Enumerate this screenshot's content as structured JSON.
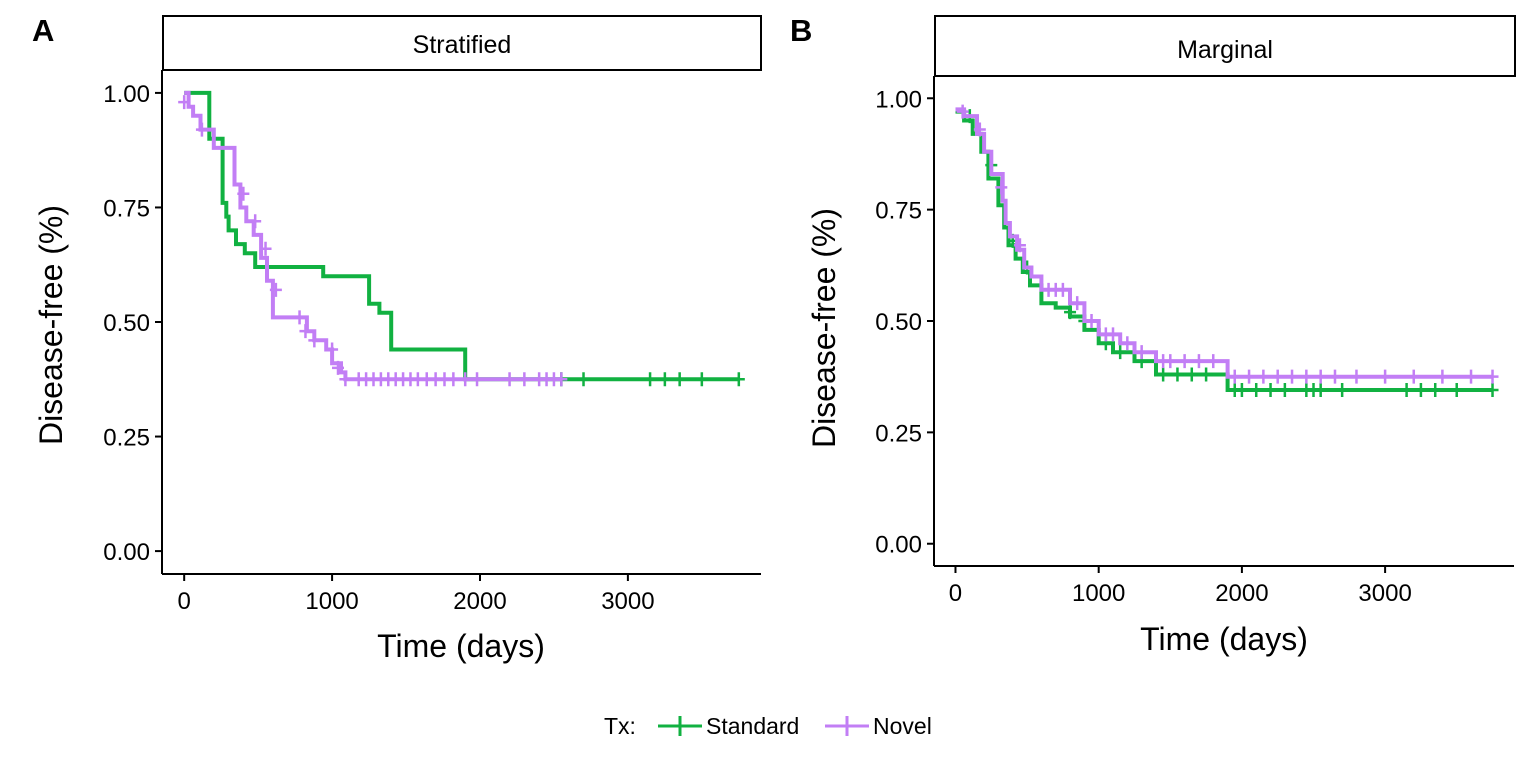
{
  "legend": {
    "title": "Tx:",
    "items": [
      {
        "label": "Standard",
        "color": "#11B141"
      },
      {
        "label": "Novel",
        "color": "#C27EF5"
      }
    ]
  },
  "chart_data": [
    {
      "type": "line",
      "subtype": "kaplan-meier step curve with censoring marks",
      "panel_tag": "A",
      "strip_title": "Stratified",
      "xlabel": "Time (days)",
      "ylabel": "Disease-free (%)",
      "xlim": [
        -150,
        3900
      ],
      "ylim": [
        -0.05,
        1.05
      ],
      "x_ticks": [
        0,
        1000,
        2000,
        3000
      ],
      "x_tick_labels": [
        "0",
        "1000",
        "2000",
        "3000"
      ],
      "y_ticks": [
        0,
        0.25,
        0.5,
        0.75,
        1
      ],
      "y_tick_labels": [
        "0.00",
        "0.25",
        "0.50",
        "0.75",
        "1.00"
      ],
      "grid": false,
      "series": [
        {
          "name": "Standard",
          "color": "#11B141",
          "x": [
            0,
            170,
            170,
            260,
            260,
            285,
            285,
            300,
            300,
            350,
            350,
            410,
            410,
            480,
            480,
            940,
            940,
            1250,
            1250,
            1320,
            1320,
            1400,
            1400,
            1900,
            1900,
            3750
          ],
          "y": [
            1.0,
            1.0,
            0.9,
            0.9,
            0.76,
            0.76,
            0.73,
            0.73,
            0.7,
            0.7,
            0.67,
            0.67,
            0.65,
            0.65,
            0.62,
            0.62,
            0.6,
            0.6,
            0.54,
            0.54,
            0.52,
            0.52,
            0.44,
            0.44,
            0.375,
            0.375
          ],
          "censor_x": [
            2550,
            2700,
            3150,
            3250,
            3350,
            3500,
            3750
          ],
          "censor_y": [
            0.375,
            0.375,
            0.375,
            0.375,
            0.375,
            0.375,
            0.375
          ]
        },
        {
          "name": "Novel",
          "color": "#C27EF5",
          "x": [
            0,
            30,
            30,
            60,
            60,
            110,
            110,
            200,
            200,
            340,
            340,
            380,
            380,
            420,
            420,
            470,
            470,
            520,
            520,
            560,
            560,
            600,
            600,
            830,
            830,
            880,
            880,
            960,
            960,
            1000,
            1000,
            1060,
            1060,
            1090,
            1090,
            2550
          ],
          "y": [
            1.0,
            1.0,
            0.97,
            0.97,
            0.95,
            0.95,
            0.92,
            0.92,
            0.88,
            0.88,
            0.8,
            0.8,
            0.75,
            0.75,
            0.72,
            0.72,
            0.69,
            0.69,
            0.64,
            0.64,
            0.59,
            0.59,
            0.51,
            0.51,
            0.48,
            0.48,
            0.46,
            0.46,
            0.44,
            0.44,
            0.41,
            0.41,
            0.39,
            0.39,
            0.375,
            0.375
          ],
          "censor_x": [
            0,
            120,
            400,
            480,
            550,
            620,
            780,
            820,
            880,
            1000,
            1040,
            1090,
            1180,
            1230,
            1280,
            1330,
            1380,
            1430,
            1480,
            1530,
            1580,
            1640,
            1700,
            1760,
            1820,
            1900,
            1980,
            2200,
            2300,
            2400,
            2450,
            2500,
            2550
          ],
          "censor_y": [
            0.98,
            0.92,
            0.78,
            0.72,
            0.66,
            0.57,
            0.51,
            0.48,
            0.46,
            0.44,
            0.4,
            0.375,
            0.375,
            0.375,
            0.375,
            0.375,
            0.375,
            0.375,
            0.375,
            0.375,
            0.375,
            0.375,
            0.375,
            0.375,
            0.375,
            0.375,
            0.375,
            0.375,
            0.375,
            0.375,
            0.375,
            0.375,
            0.375
          ]
        }
      ]
    },
    {
      "type": "line",
      "subtype": "kaplan-meier step curve with censoring marks",
      "panel_tag": "B",
      "strip_title": "Marginal",
      "xlabel": "Time (days)",
      "ylabel": "Disease-free (%)",
      "xlim": [
        -150,
        3900
      ],
      "ylim": [
        -0.05,
        1.05
      ],
      "x_ticks": [
        0,
        1000,
        2000,
        3000
      ],
      "x_tick_labels": [
        "0",
        "1000",
        "2000",
        "3000"
      ],
      "y_ticks": [
        0,
        0.25,
        0.5,
        0.75,
        1
      ],
      "y_tick_labels": [
        "0.00",
        "0.25",
        "0.50",
        "0.75",
        "1.00"
      ],
      "grid": false,
      "series": [
        {
          "name": "Standard",
          "color": "#11B141",
          "x": [
            0,
            60,
            60,
            120,
            120,
            180,
            180,
            230,
            230,
            300,
            300,
            340,
            340,
            370,
            370,
            420,
            420,
            470,
            470,
            520,
            520,
            600,
            600,
            700,
            700,
            800,
            800,
            900,
            900,
            1000,
            1000,
            1100,
            1100,
            1250,
            1250,
            1400,
            1400,
            1900,
            1900,
            3750
          ],
          "y": [
            0.97,
            0.97,
            0.95,
            0.95,
            0.92,
            0.92,
            0.88,
            0.88,
            0.82,
            0.82,
            0.76,
            0.76,
            0.71,
            0.71,
            0.67,
            0.67,
            0.64,
            0.64,
            0.61,
            0.61,
            0.58,
            0.58,
            0.54,
            0.54,
            0.53,
            0.53,
            0.51,
            0.51,
            0.48,
            0.48,
            0.45,
            0.45,
            0.43,
            0.43,
            0.41,
            0.41,
            0.38,
            0.38,
            0.345,
            0.345
          ],
          "censor_x": [
            100,
            250,
            400,
            500,
            800,
            900,
            1050,
            1150,
            1300,
            1450,
            1550,
            1650,
            1750,
            1950,
            2000,
            2100,
            2200,
            2300,
            2450,
            2500,
            2550,
            2700,
            3150,
            3250,
            3350,
            3500,
            3750
          ],
          "censor_y": [
            0.96,
            0.85,
            0.68,
            0.62,
            0.52,
            0.5,
            0.45,
            0.43,
            0.41,
            0.38,
            0.38,
            0.38,
            0.38,
            0.345,
            0.345,
            0.345,
            0.345,
            0.345,
            0.345,
            0.345,
            0.345,
            0.345,
            0.345,
            0.345,
            0.345,
            0.345,
            0.345
          ]
        },
        {
          "name": "Novel",
          "color": "#C27EF5",
          "x": [
            0,
            60,
            60,
            150,
            150,
            200,
            200,
            250,
            250,
            330,
            330,
            350,
            350,
            380,
            380,
            430,
            430,
            480,
            480,
            530,
            530,
            600,
            600,
            800,
            800,
            900,
            900,
            1000,
            1000,
            1150,
            1150,
            1250,
            1250,
            1400,
            1400,
            1900,
            1900,
            3750
          ],
          "y": [
            0.975,
            0.975,
            0.96,
            0.96,
            0.92,
            0.92,
            0.88,
            0.88,
            0.83,
            0.83,
            0.77,
            0.77,
            0.72,
            0.72,
            0.69,
            0.69,
            0.66,
            0.66,
            0.62,
            0.62,
            0.6,
            0.6,
            0.57,
            0.57,
            0.54,
            0.54,
            0.5,
            0.5,
            0.47,
            0.47,
            0.45,
            0.45,
            0.43,
            0.43,
            0.41,
            0.41,
            0.375,
            0.375
          ],
          "censor_x": [
            50,
            170,
            320,
            450,
            650,
            700,
            750,
            850,
            950,
            1050,
            1100,
            1200,
            1300,
            1450,
            1500,
            1600,
            1700,
            1800,
            1950,
            2050,
            2150,
            2250,
            2350,
            2450,
            2550,
            2650,
            2800,
            3000,
            3200,
            3400,
            3600,
            3750
          ],
          "censor_y": [
            0.97,
            0.93,
            0.8,
            0.67,
            0.57,
            0.57,
            0.57,
            0.54,
            0.5,
            0.47,
            0.47,
            0.45,
            0.43,
            0.41,
            0.41,
            0.41,
            0.41,
            0.41,
            0.375,
            0.375,
            0.375,
            0.375,
            0.375,
            0.375,
            0.375,
            0.375,
            0.375,
            0.375,
            0.375,
            0.375,
            0.375,
            0.375
          ]
        }
      ]
    }
  ]
}
